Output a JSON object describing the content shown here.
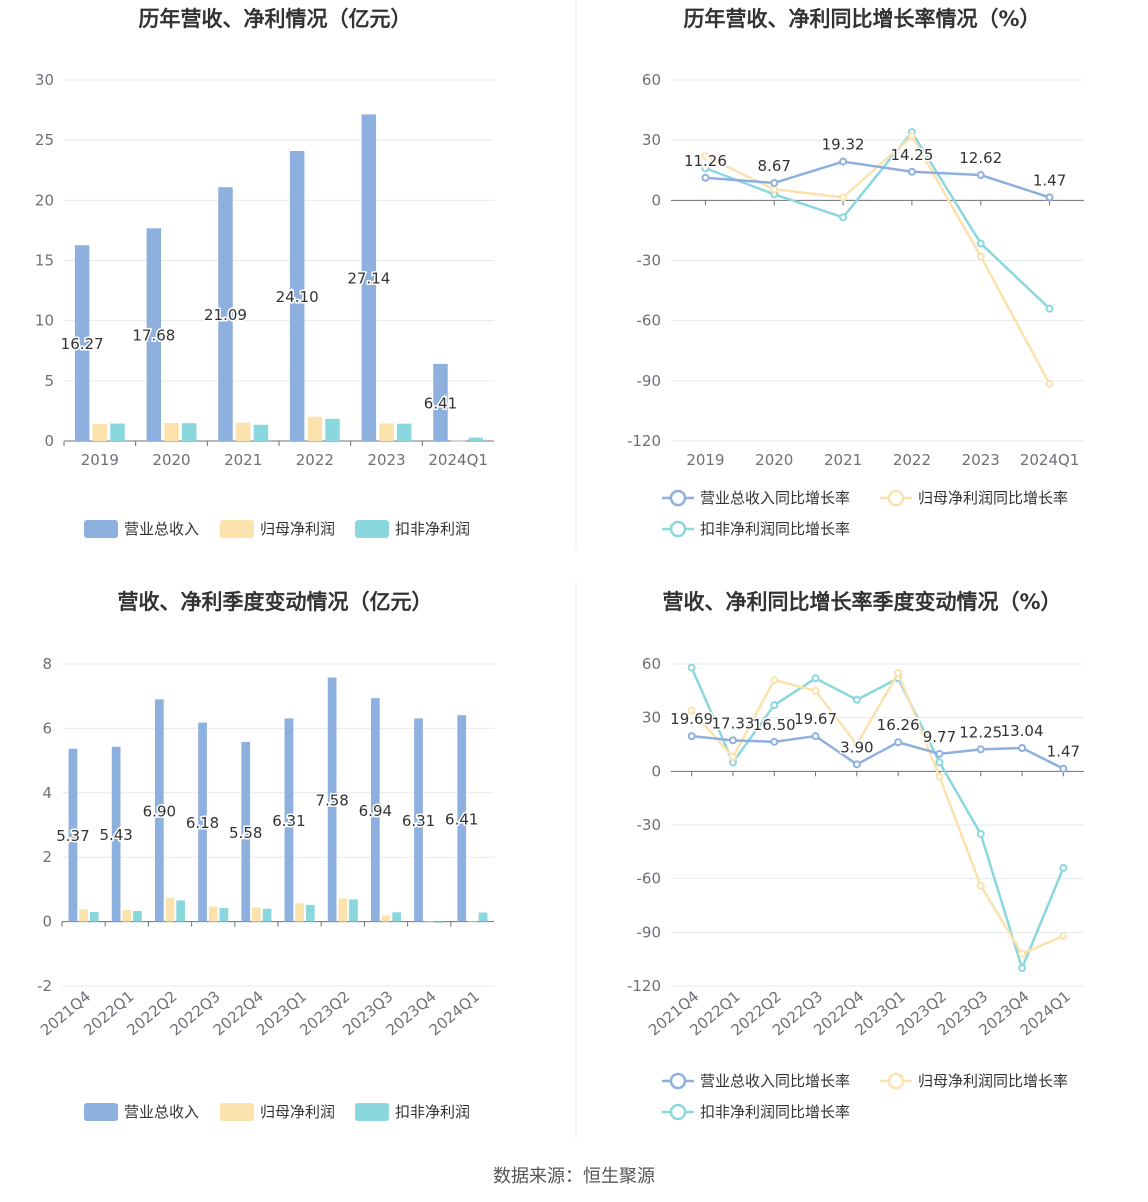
{
  "source_label": "数据来源：恒生聚源",
  "chart_data": [
    {
      "type": "bar",
      "title": "历年营收、净利情况（亿元）",
      "categories": [
        "2019",
        "2020",
        "2021",
        "2022",
        "2023",
        "2024Q1"
      ],
      "ylim": [
        0,
        30
      ],
      "yticks": [
        0,
        5,
        10,
        15,
        20,
        25,
        30
      ],
      "grid": true,
      "legend_position": "bottom",
      "series": [
        {
          "name": "营业总收入",
          "color": "#8eb0df",
          "values": [
            16.27,
            17.68,
            21.09,
            24.1,
            27.14,
            6.41
          ],
          "labels": [
            "16.27",
            "17.68",
            "21.09",
            "24.10",
            "27.14",
            "6.41"
          ]
        },
        {
          "name": "归母净利润",
          "color": "#fce2ac",
          "values": [
            1.42,
            1.5,
            1.52,
            2.02,
            1.45,
            0.02
          ]
        },
        {
          "name": "扣非净利润",
          "color": "#8ad8de",
          "values": [
            1.45,
            1.48,
            1.35,
            1.84,
            1.44,
            0.28
          ]
        }
      ]
    },
    {
      "type": "line",
      "title": "历年营收、净利同比增长率情况（%）",
      "categories": [
        "2019",
        "2020",
        "2021",
        "2022",
        "2023",
        "2024Q1"
      ],
      "ylim": [
        -120,
        60
      ],
      "yticks": [
        -120,
        -90,
        -60,
        -30,
        0,
        30,
        60
      ],
      "grid": true,
      "legend_position": "bottom",
      "series": [
        {
          "name": "营业总收入同比增长率",
          "color": "#8eb0df",
          "values": [
            11.26,
            8.67,
            19.32,
            14.25,
            12.62,
            1.47
          ],
          "labels": [
            "11.26",
            "8.67",
            "19.32",
            "14.25",
            "12.62",
            "1.47"
          ]
        },
        {
          "name": "归母净利润同比增长率",
          "color": "#fce2ac",
          "values": [
            22,
            5.5,
            1.5,
            32,
            -28,
            -91.5
          ]
        },
        {
          "name": "扣非净利润同比增长率",
          "color": "#8ad8de",
          "values": [
            16,
            3,
            -8.5,
            34,
            -21.5,
            -54
          ]
        }
      ]
    },
    {
      "type": "bar",
      "title": "营收、净利季度变动情况（亿元）",
      "categories": [
        "2021Q4",
        "2022Q1",
        "2022Q2",
        "2022Q3",
        "2022Q4",
        "2023Q1",
        "2023Q2",
        "2023Q3",
        "2023Q4",
        "2024Q1"
      ],
      "ylim": [
        -2,
        8
      ],
      "yticks": [
        -2,
        0,
        2,
        4,
        6,
        8
      ],
      "grid": true,
      "legend_position": "bottom",
      "series": [
        {
          "name": "营业总收入",
          "color": "#8eb0df",
          "values": [
            5.37,
            5.43,
            6.9,
            6.18,
            5.58,
            6.31,
            7.58,
            6.94,
            6.31,
            6.41
          ],
          "labels": [
            "5.37",
            "5.43",
            "6.90",
            "6.18",
            "5.58",
            "6.31",
            "7.58",
            "6.94",
            "6.31",
            "6.41"
          ]
        },
        {
          "name": "归母净利润",
          "color": "#fce2ac",
          "values": [
            0.38,
            0.36,
            0.73,
            0.47,
            0.44,
            0.57,
            0.72,
            0.19,
            -0.02,
            0.02
          ]
        },
        {
          "name": "扣非净利润",
          "color": "#8ad8de",
          "values": [
            0.3,
            0.33,
            0.66,
            0.42,
            0.4,
            0.52,
            0.69,
            0.29,
            -0.04,
            0.28
          ]
        }
      ]
    },
    {
      "type": "line",
      "title": "营收、净利同比增长率季度变动情况（%）",
      "categories": [
        "2021Q4",
        "2022Q1",
        "2022Q2",
        "2022Q3",
        "2022Q4",
        "2023Q1",
        "2023Q2",
        "2023Q3",
        "2023Q4",
        "2024Q1"
      ],
      "ylim": [
        -120,
        60
      ],
      "yticks": [
        -120,
        -90,
        -60,
        -30,
        0,
        30,
        60
      ],
      "grid": true,
      "legend_position": "bottom",
      "series": [
        {
          "name": "营业总收入同比增长率",
          "color": "#8eb0df",
          "values": [
            19.69,
            17.33,
            16.5,
            19.67,
            3.9,
            16.26,
            9.77,
            12.25,
            13.04,
            1.47
          ],
          "labels": [
            "19.69",
            "17.33",
            "16.50",
            "19.67",
            "3.90",
            "16.26",
            "9.77",
            "12.25",
            "13.04",
            "1.47"
          ]
        },
        {
          "name": "归母净利润同比增长率",
          "color": "#fce2ac",
          "values": [
            34,
            8,
            51,
            45,
            15,
            55,
            -3,
            -64,
            -102,
            -92
          ]
        },
        {
          "name": "扣非净利润同比增长率",
          "color": "#8ad8de",
          "values": [
            58,
            5,
            37,
            52,
            40,
            52,
            5,
            -35,
            -110,
            -54
          ]
        }
      ]
    }
  ]
}
